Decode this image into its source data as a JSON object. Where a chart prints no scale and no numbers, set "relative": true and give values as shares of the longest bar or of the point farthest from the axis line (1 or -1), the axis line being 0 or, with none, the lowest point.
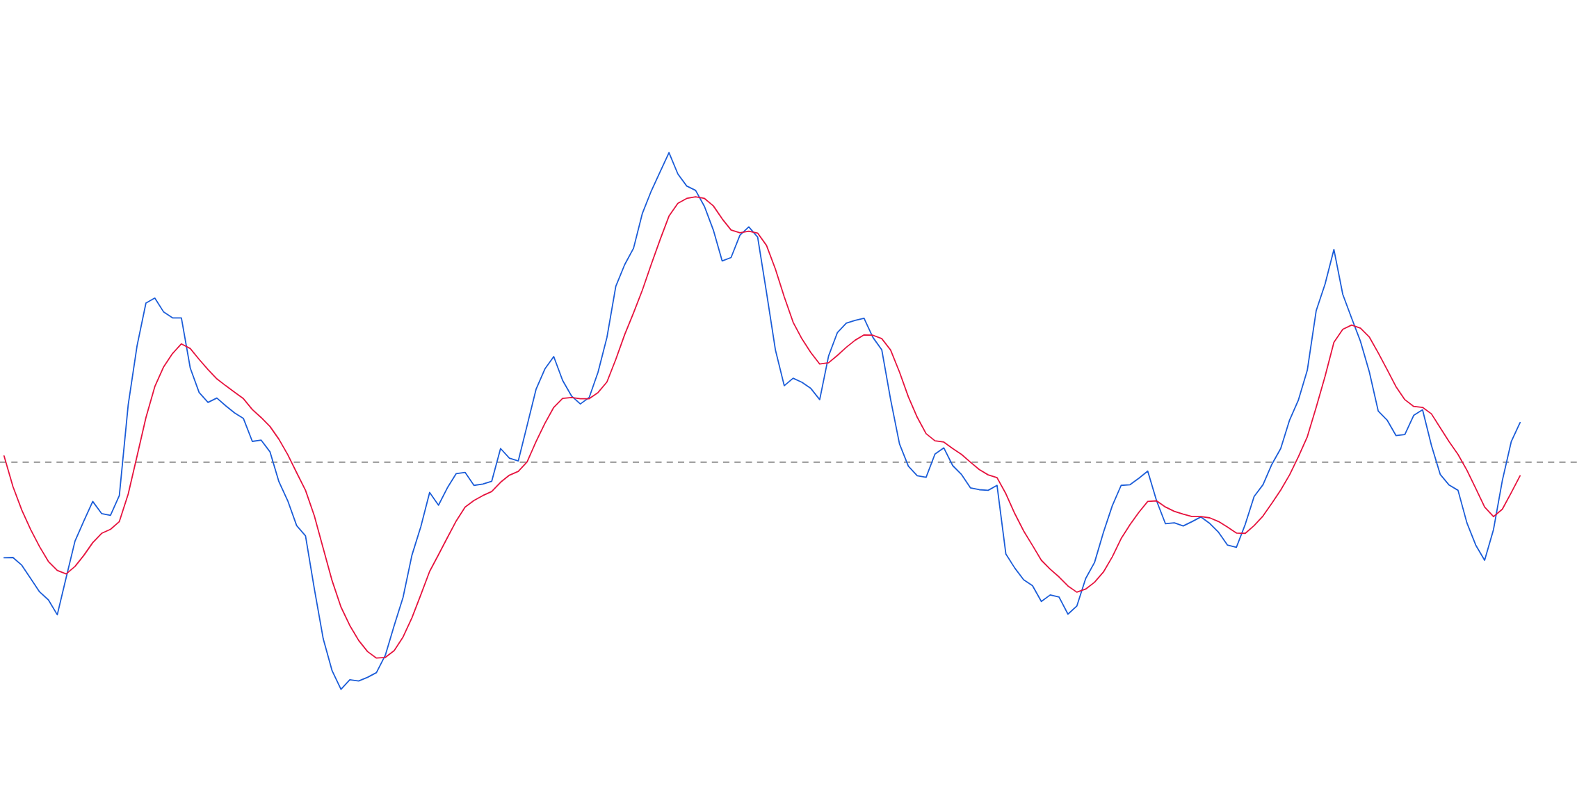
{
  "chart_data": {
    "type": "line",
    "relative": true,
    "categories": [
      null,
      null,
      null,
      null,
      null,
      null,
      null,
      null,
      null,
      null,
      null,
      null,
      null,
      null,
      null,
      null,
      null,
      null,
      null,
      null,
      null,
      null,
      null,
      null,
      null,
      null,
      null,
      null,
      null,
      null,
      null,
      null,
      null,
      null,
      null,
      null,
      null,
      null,
      null,
      null,
      null,
      null,
      null,
      null,
      null,
      null,
      null,
      null,
      null,
      null,
      null,
      null,
      null,
      null,
      null,
      null,
      null,
      null,
      null,
      null,
      null,
      null,
      null,
      null,
      null,
      null,
      null,
      null,
      null,
      null,
      null,
      null,
      null,
      null,
      null,
      null,
      null,
      null,
      null,
      null,
      null,
      null,
      null,
      null,
      null,
      null,
      null,
      null,
      null,
      null,
      null,
      null,
      null,
      null,
      null,
      null,
      null,
      null,
      null,
      null,
      null,
      null,
      null,
      null,
      null,
      null,
      null,
      null,
      null,
      null,
      null,
      null,
      null,
      null,
      null,
      null,
      null,
      null,
      null,
      null,
      null,
      null,
      null,
      null,
      null,
      null,
      null,
      null,
      null,
      null,
      null,
      null,
      null,
      null,
      null,
      null,
      null,
      null,
      null,
      null,
      null,
      null,
      null,
      null,
      null,
      null,
      null,
      null,
      null,
      null,
      null,
      null,
      null,
      null,
      null,
      null,
      null,
      null,
      null,
      null,
      null,
      null,
      null,
      null,
      null,
      null,
      null,
      null,
      null,
      null,
      null,
      null
    ],
    "series": [
      {
        "color": "#1a5cd8",
        "values": [
          -0.309,
          -0.308,
          -0.333,
          -0.376,
          -0.419,
          -0.445,
          -0.493,
          -0.373,
          -0.255,
          -0.19,
          -0.127,
          -0.166,
          -0.172,
          -0.108,
          0.185,
          0.376,
          0.514,
          0.53,
          0.485,
          0.466,
          0.466,
          0.304,
          0.225,
          0.193,
          0.207,
          0.182,
          0.159,
          0.141,
          0.067,
          0.071,
          0.033,
          -0.063,
          -0.125,
          -0.205,
          -0.238,
          -0.41,
          -0.571,
          -0.674,
          -0.734,
          -0.703,
          -0.707,
          -0.695,
          -0.68,
          -0.624,
          -0.528,
          -0.437,
          -0.301,
          -0.209,
          -0.098,
          -0.139,
          -0.083,
          -0.037,
          -0.033,
          -0.075,
          -0.071,
          -0.062,
          0.044,
          0.013,
          0.004,
          0.119,
          0.235,
          0.301,
          0.341,
          0.264,
          0.214,
          0.188,
          0.209,
          0.291,
          0.403,
          0.568,
          0.638,
          0.691,
          0.804,
          0.876,
          0.938,
          1.0,
          0.931,
          0.892,
          0.878,
          0.826,
          0.75,
          0.65,
          0.661,
          0.733,
          0.76,
          0.727,
          0.548,
          0.363,
          0.247,
          0.271,
          0.258,
          0.238,
          0.202,
          0.343,
          0.419,
          0.449,
          0.458,
          0.465,
          0.403,
          0.363,
          0.202,
          0.059,
          -0.013,
          -0.044,
          -0.049,
          0.026,
          0.046,
          -0.011,
          -0.04,
          -0.083,
          -0.089,
          -0.091,
          -0.075,
          -0.297,
          -0.342,
          -0.38,
          -0.399,
          -0.45,
          -0.429,
          -0.436,
          -0.491,
          -0.465,
          -0.376,
          -0.324,
          -0.227,
          -0.141,
          -0.075,
          -0.073,
          -0.052,
          -0.029,
          -0.125,
          -0.199,
          -0.196,
          -0.206,
          -0.192,
          -0.177,
          -0.198,
          -0.227,
          -0.268,
          -0.275,
          -0.201,
          -0.111,
          -0.073,
          -0.007,
          0.044,
          0.136,
          0.201,
          0.297,
          0.489,
          0.575,
          0.687,
          0.542,
          0.465,
          0.39,
          0.291,
          0.165,
          0.136,
          0.086,
          0.089,
          0.151,
          0.169,
          0.054,
          -0.04,
          -0.074,
          -0.091,
          -0.196,
          -0.268,
          -0.317,
          -0.218,
          -0.059,
          0.066,
          0.128
        ]
      },
      {
        "color": "#e6123d",
        "values": [
          0.02,
          -0.079,
          -0.155,
          -0.218,
          -0.273,
          -0.321,
          -0.35,
          -0.361,
          -0.337,
          -0.301,
          -0.26,
          -0.23,
          -0.217,
          -0.192,
          -0.103,
          0.02,
          0.144,
          0.244,
          0.308,
          0.351,
          0.382,
          0.367,
          0.332,
          0.299,
          0.269,
          0.247,
          0.226,
          0.205,
          0.17,
          0.144,
          0.115,
          0.074,
          0.024,
          -0.034,
          -0.091,
          -0.174,
          -0.279,
          -0.383,
          -0.468,
          -0.528,
          -0.576,
          -0.612,
          -0.633,
          -0.631,
          -0.609,
          -0.565,
          -0.503,
          -0.429,
          -0.353,
          -0.299,
          -0.244,
          -0.19,
          -0.145,
          -0.124,
          -0.108,
          -0.095,
          -0.065,
          -0.042,
          -0.03,
          0.001,
          0.066,
          0.125,
          0.177,
          0.206,
          0.209,
          0.205,
          0.205,
          0.225,
          0.259,
          0.332,
          0.412,
          0.482,
          0.556,
          0.639,
          0.719,
          0.795,
          0.836,
          0.852,
          0.857,
          0.852,
          0.828,
          0.786,
          0.75,
          0.741,
          0.746,
          0.74,
          0.7,
          0.624,
          0.534,
          0.452,
          0.398,
          0.354,
          0.317,
          0.321,
          0.345,
          0.371,
          0.394,
          0.411,
          0.41,
          0.399,
          0.362,
          0.291,
          0.211,
          0.145,
          0.092,
          0.069,
          0.065,
          0.044,
          0.025,
          0.0,
          -0.024,
          -0.041,
          -0.05,
          -0.102,
          -0.166,
          -0.222,
          -0.269,
          -0.317,
          -0.346,
          -0.371,
          -0.4,
          -0.42,
          -0.41,
          -0.388,
          -0.355,
          -0.306,
          -0.247,
          -0.202,
          -0.162,
          -0.127,
          -0.125,
          -0.145,
          -0.159,
          -0.168,
          -0.176,
          -0.176,
          -0.18,
          -0.192,
          -0.21,
          -0.229,
          -0.23,
          -0.205,
          -0.174,
          -0.133,
          -0.09,
          -0.041,
          0.018,
          0.082,
          0.177,
          0.277,
          0.387,
          0.429,
          0.443,
          0.433,
          0.404,
          0.353,
          0.299,
          0.244,
          0.202,
          0.18,
          0.177,
          0.156,
          0.111,
          0.066,
          0.025,
          -0.026,
          -0.085,
          -0.145,
          -0.176,
          -0.152,
          -0.099,
          -0.044
        ]
      }
    ],
    "ref_lines": [
      {
        "axis": "y",
        "value": 0,
        "color": "#888888",
        "line_style": "dashed"
      }
    ]
  }
}
